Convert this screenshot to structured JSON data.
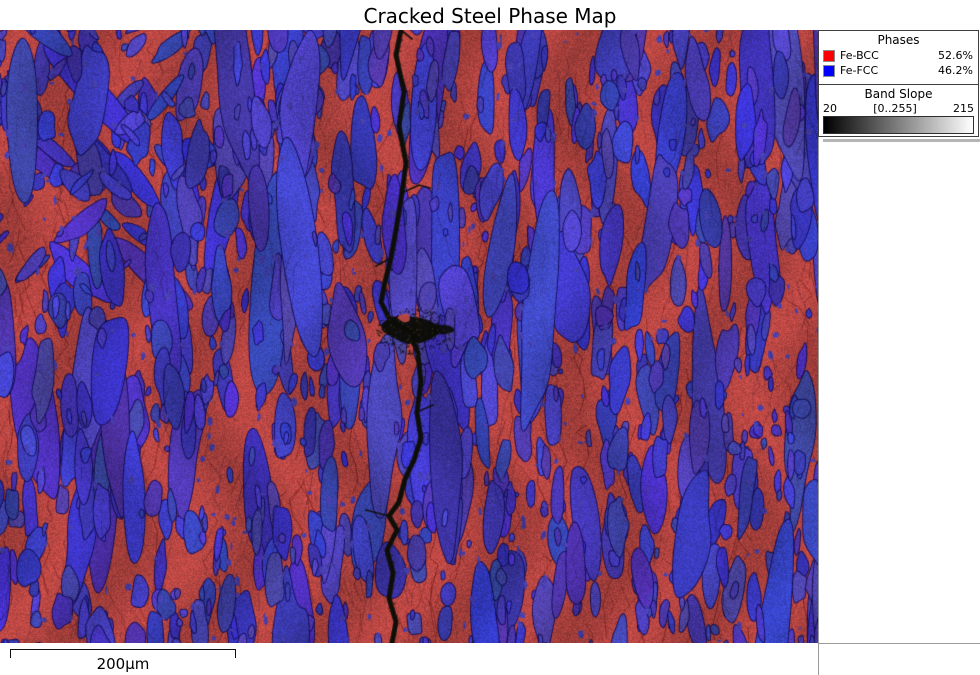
{
  "title": "Cracked Steel Phase Map",
  "legend": {
    "phases": {
      "header": "Phases",
      "items": [
        {
          "label": "Fe-BCC",
          "value": "52.6%",
          "color": "#ff0000"
        },
        {
          "label": "Fe-FCC",
          "value": "46.2%",
          "color": "#0000ff"
        }
      ]
    },
    "band_slope": {
      "header": "Band Slope",
      "min": "20",
      "range": "[0..255]",
      "max": "215",
      "gradient_start": "#000000",
      "gradient_end": "#ffffff"
    }
  },
  "scale_bar": {
    "label": "200µm"
  },
  "map": {
    "phase_colors": {
      "fe_bcc": "#c24a46",
      "fe_fcc": "#4a42c8",
      "crack": "#0e0e08"
    }
  },
  "chart_data": {
    "type": "heatmap",
    "title": "Cracked Steel Phase Map",
    "legend_position": "top-right",
    "series": [
      {
        "name": "Fe-BCC",
        "color": "#ff0000",
        "area_fraction_percent": 52.6
      },
      {
        "name": "Fe-FCC",
        "color": "#0000ff",
        "area_fraction_percent": 46.2
      }
    ],
    "colorbar": {
      "label": "Band Slope",
      "display_min": 20,
      "display_max": 215,
      "data_range": "[0..255]",
      "colormap": "grayscale"
    },
    "scale_bar_label": "200µm",
    "annotations": [
      "jagged vertical crack running through center of map"
    ]
  }
}
